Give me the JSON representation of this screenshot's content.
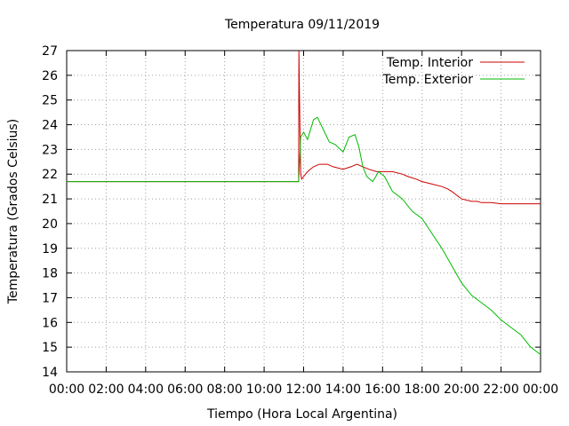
{
  "chart_data": {
    "type": "line",
    "title": "Temperatura 09/11/2019",
    "xlabel": "Tiempo (Hora Local Argentina)",
    "ylabel": "Temperatura (Grados Celsius)",
    "xlim": [
      0,
      24
    ],
    "ylim": [
      14,
      27
    ],
    "grid": true,
    "legend_position": "top-right",
    "x_tick_labels": [
      "00:00",
      "02:00",
      "04:00",
      "06:00",
      "08:00",
      "10:00",
      "12:00",
      "14:00",
      "16:00",
      "18:00",
      "20:00",
      "22:00",
      "00:00"
    ],
    "y_tick_labels": [
      "14",
      "15",
      "16",
      "17",
      "18",
      "19",
      "20",
      "21",
      "22",
      "23",
      "24",
      "25",
      "26",
      "27"
    ],
    "series": [
      {
        "name": "Temp. Interior",
        "color": "#cc0000",
        "x": [
          0,
          11.75,
          11.76,
          11.78,
          11.85,
          11.9,
          12.0,
          12.2,
          12.5,
          12.8,
          13.2,
          13.5,
          14.0,
          14.4,
          14.7,
          15.0,
          15.3,
          15.7,
          16.0,
          16.5,
          17.0,
          17.3,
          17.7,
          18.0,
          18.5,
          19.0,
          19.3,
          19.5,
          20.0,
          20.5,
          20.8,
          21.0,
          21.5,
          22.0,
          22.5,
          23.0,
          23.5,
          24.0
        ],
        "y": [
          21.7,
          21.7,
          27.0,
          25.8,
          22.0,
          21.8,
          21.9,
          22.1,
          22.3,
          22.4,
          22.4,
          22.3,
          22.2,
          22.3,
          22.4,
          22.3,
          22.2,
          22.1,
          22.1,
          22.1,
          22.0,
          21.9,
          21.8,
          21.7,
          21.6,
          21.5,
          21.4,
          21.3,
          21.0,
          20.9,
          20.9,
          20.85,
          20.85,
          20.8,
          20.8,
          20.8,
          20.8,
          20.8
        ]
      },
      {
        "name": "Temp. Exterior",
        "color": "#00bb00",
        "x": [
          0,
          11.75,
          11.85,
          12.0,
          12.2,
          12.5,
          12.7,
          13.0,
          13.3,
          13.6,
          14.0,
          14.3,
          14.6,
          14.8,
          15.0,
          15.2,
          15.5,
          15.8,
          16.1,
          16.5,
          17.0,
          17.5,
          18.0,
          18.5,
          19.0,
          19.5,
          20.0,
          20.5,
          21.0,
          21.5,
          22.0,
          22.5,
          23.0,
          23.5,
          24.0
        ],
        "y": [
          21.7,
          21.7,
          23.5,
          23.7,
          23.4,
          24.2,
          24.3,
          23.8,
          23.3,
          23.2,
          22.9,
          23.5,
          23.6,
          23.1,
          22.3,
          21.9,
          21.7,
          22.1,
          21.9,
          21.3,
          21.0,
          20.5,
          20.2,
          19.6,
          19.0,
          18.3,
          17.6,
          17.1,
          16.8,
          16.5,
          16.1,
          15.8,
          15.5,
          15.0,
          14.7
        ]
      }
    ]
  }
}
